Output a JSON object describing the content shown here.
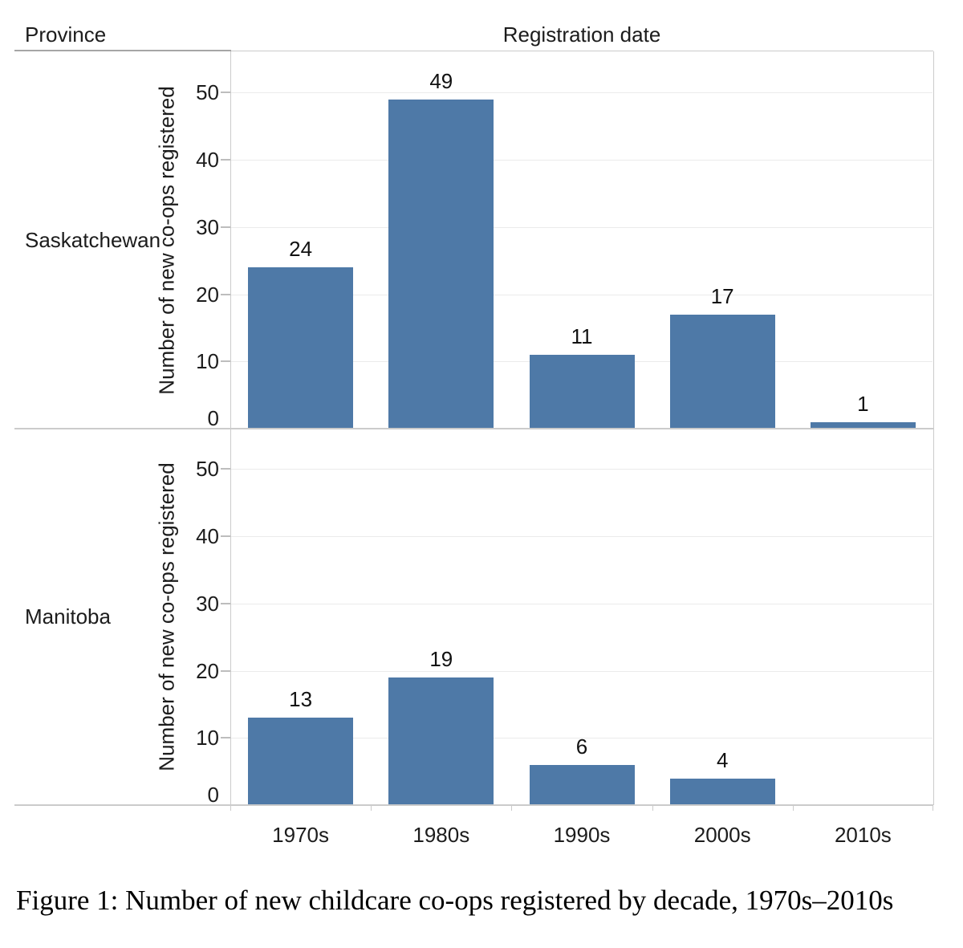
{
  "figure": {
    "row_dimension_label": "Province",
    "col_dimension_label": "Registration date",
    "caption": "Figure 1: Number of new childcare co-ops registered by decade, 1970s–2010s"
  },
  "chart_data": {
    "type": "bar",
    "layout_hint": "two vertically stacked row facets (one per province) sharing the x axis; value labels above bars; light horizontal gridlines; no legend",
    "categories": [
      "1970s",
      "1980s",
      "1990s",
      "2000s",
      "2010s"
    ],
    "series": [
      {
        "name": "Saskatchewan",
        "values": [
          24,
          49,
          11,
          17,
          1
        ]
      },
      {
        "name": "Manitoba",
        "values": [
          13,
          19,
          6,
          4,
          null
        ]
      }
    ],
    "xlabel": "Registration date",
    "ylabel": "Number of new co-ops registered",
    "yticks": [
      0,
      10,
      20,
      30,
      40,
      50
    ],
    "ylim": [
      0,
      56
    ],
    "grid": true,
    "value_labels": true,
    "bar_color": "#4e79a7"
  },
  "colors": {
    "bar": "#4e79a7",
    "grid_line": "#ebebeb",
    "panel_border": "#cbcbcb",
    "header_rule": "#a6a6a6",
    "tick_mark": "#bdbdbd",
    "text": "#1c1c1c"
  }
}
